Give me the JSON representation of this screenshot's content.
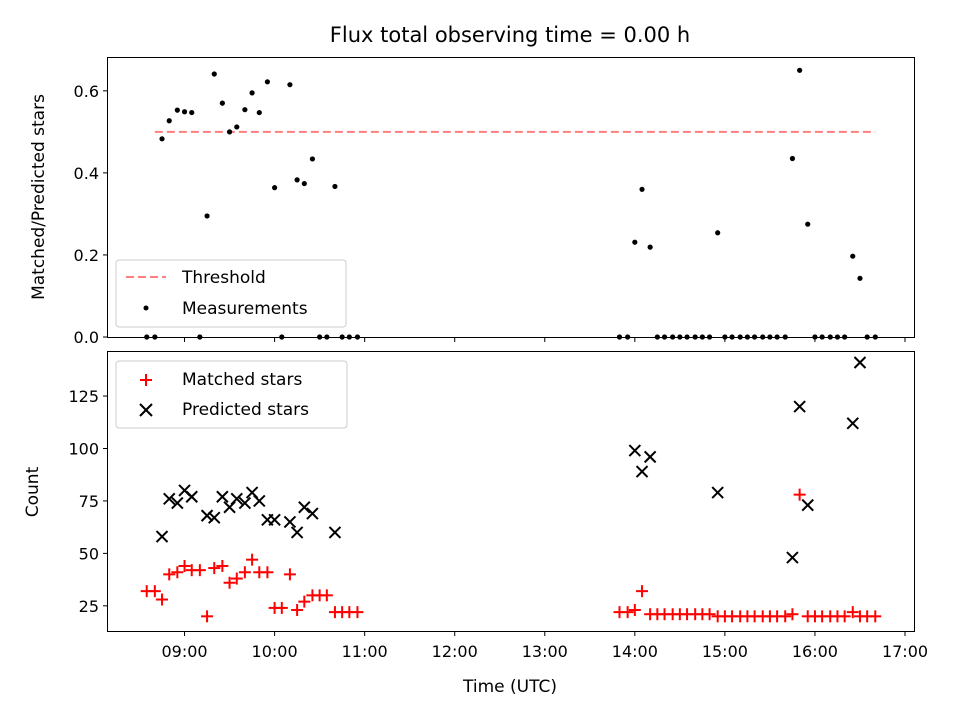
{
  "title": "Flux total observing time = 0.00 h",
  "x_axis": {
    "label": "Time (UTC)",
    "range_hours": [
      8.15,
      17.1
    ],
    "ticks": [
      9,
      10,
      11,
      12,
      13,
      14,
      15,
      16,
      17
    ],
    "tick_labels": [
      "09:00",
      "10:00",
      "11:00",
      "12:00",
      "13:00",
      "14:00",
      "15:00",
      "16:00",
      "17:00"
    ]
  },
  "colors": {
    "threshold": "#ff7f7f",
    "measurements": "#000000",
    "matched": "#ff0000",
    "predicted": "#000000"
  },
  "chart_data": [
    {
      "type": "scatter",
      "panel": "top",
      "title": "Flux total observing time = 0.00 h",
      "ylabel": "Matched/Predicted stars",
      "xlabel": "",
      "ylim": [
        0,
        0.68
      ],
      "yticks": [
        0.0,
        0.2,
        0.4,
        0.6
      ],
      "ytick_labels": [
        "0.0",
        "0.2",
        "0.4",
        "0.6"
      ],
      "legend": {
        "placement": "lower-left",
        "entries": [
          "Threshold",
          "Measurements"
        ]
      },
      "threshold": {
        "name": "Threshold",
        "y": 0.5,
        "x_start": 8.67,
        "x_end": 16.67,
        "style": "dashed"
      },
      "series": [
        {
          "name": "Measurements",
          "points": [
            [
              8.58,
              0.0
            ],
            [
              8.67,
              0.0
            ],
            [
              8.75,
              0.483
            ],
            [
              8.83,
              0.527
            ],
            [
              8.92,
              0.553
            ],
            [
              9.0,
              0.549
            ],
            [
              9.08,
              0.547
            ],
            [
              9.17,
              0.0
            ],
            [
              9.25,
              0.295
            ],
            [
              9.33,
              0.641
            ],
            [
              9.42,
              0.57
            ],
            [
              9.5,
              0.5
            ],
            [
              9.58,
              0.512
            ],
            [
              9.67,
              0.554
            ],
            [
              9.75,
              0.595
            ],
            [
              9.83,
              0.547
            ],
            [
              9.92,
              0.622
            ],
            [
              10.0,
              0.364
            ],
            [
              10.08,
              0.0
            ],
            [
              10.17,
              0.615
            ],
            [
              10.25,
              0.383
            ],
            [
              10.33,
              0.374
            ],
            [
              10.42,
              0.434
            ],
            [
              10.5,
              0.0
            ],
            [
              10.58,
              0.0
            ],
            [
              10.67,
              0.367
            ],
            [
              10.75,
              0.0
            ],
            [
              10.83,
              0.0
            ],
            [
              10.92,
              0.0
            ],
            [
              13.83,
              0.0
            ],
            [
              13.92,
              0.0
            ],
            [
              14.0,
              0.231
            ],
            [
              14.08,
              0.36
            ],
            [
              14.17,
              0.219
            ],
            [
              14.25,
              0.0
            ],
            [
              14.33,
              0.0
            ],
            [
              14.42,
              0.0
            ],
            [
              14.5,
              0.0
            ],
            [
              14.58,
              0.0
            ],
            [
              14.67,
              0.0
            ],
            [
              14.75,
              0.0
            ],
            [
              14.83,
              0.0
            ],
            [
              14.92,
              0.254
            ],
            [
              15.0,
              0.0
            ],
            [
              15.08,
              0.0
            ],
            [
              15.17,
              0.0
            ],
            [
              15.25,
              0.0
            ],
            [
              15.33,
              0.0
            ],
            [
              15.42,
              0.0
            ],
            [
              15.5,
              0.0
            ],
            [
              15.58,
              0.0
            ],
            [
              15.67,
              0.0
            ],
            [
              15.75,
              0.435
            ],
            [
              15.83,
              0.65
            ],
            [
              15.92,
              0.275
            ],
            [
              16.0,
              0.0
            ],
            [
              16.08,
              0.0
            ],
            [
              16.17,
              0.0
            ],
            [
              16.25,
              0.0
            ],
            [
              16.33,
              0.0
            ],
            [
              16.42,
              0.197
            ],
            [
              16.5,
              0.143
            ],
            [
              16.58,
              0.0
            ],
            [
              16.67,
              0.0
            ]
          ]
        }
      ]
    },
    {
      "type": "scatter",
      "panel": "bottom",
      "ylabel": "Count",
      "xlabel": "Time (UTC)",
      "ylim": [
        13,
        146
      ],
      "yticks": [
        25,
        50,
        75,
        100,
        125
      ],
      "ytick_labels": [
        "25",
        "50",
        "75",
        "100",
        "125"
      ],
      "legend": {
        "placement": "upper-left",
        "entries": [
          "Matched stars",
          "Predicted stars"
        ]
      },
      "series": [
        {
          "name": "Matched stars",
          "marker": "plus",
          "points": [
            [
              8.58,
              32
            ],
            [
              8.67,
              32
            ],
            [
              8.75,
              28
            ],
            [
              8.83,
              40
            ],
            [
              8.92,
              41
            ],
            [
              9.0,
              44
            ],
            [
              9.08,
              42
            ],
            [
              9.17,
              42
            ],
            [
              9.25,
              20
            ],
            [
              9.33,
              43
            ],
            [
              9.42,
              44
            ],
            [
              9.5,
              36
            ],
            [
              9.58,
              38
            ],
            [
              9.67,
              41
            ],
            [
              9.75,
              47
            ],
            [
              9.83,
              41
            ],
            [
              9.92,
              41
            ],
            [
              10.0,
              24
            ],
            [
              10.08,
              24
            ],
            [
              10.17,
              40
            ],
            [
              10.25,
              23
            ],
            [
              10.33,
              27
            ],
            [
              10.42,
              30
            ],
            [
              10.5,
              30
            ],
            [
              10.58,
              30
            ],
            [
              10.67,
              22
            ],
            [
              10.75,
              22
            ],
            [
              10.83,
              22
            ],
            [
              10.92,
              22
            ],
            [
              13.83,
              22
            ],
            [
              13.92,
              22
            ],
            [
              14.0,
              23
            ],
            [
              14.08,
              32
            ],
            [
              14.17,
              21
            ],
            [
              14.25,
              21
            ],
            [
              14.33,
              21
            ],
            [
              14.42,
              21
            ],
            [
              14.5,
              21
            ],
            [
              14.58,
              21
            ],
            [
              14.67,
              21
            ],
            [
              14.75,
              21
            ],
            [
              14.83,
              21
            ],
            [
              14.92,
              20
            ],
            [
              15.0,
              20
            ],
            [
              15.08,
              20
            ],
            [
              15.17,
              20
            ],
            [
              15.25,
              20
            ],
            [
              15.33,
              20
            ],
            [
              15.42,
              20
            ],
            [
              15.5,
              20
            ],
            [
              15.58,
              20
            ],
            [
              15.67,
              20
            ],
            [
              15.75,
              21
            ],
            [
              15.83,
              78
            ],
            [
              15.92,
              20
            ],
            [
              16.0,
              20
            ],
            [
              16.08,
              20
            ],
            [
              16.17,
              20
            ],
            [
              16.25,
              20
            ],
            [
              16.33,
              20
            ],
            [
              16.42,
              22
            ],
            [
              16.5,
              20
            ],
            [
              16.58,
              20
            ],
            [
              16.67,
              20
            ]
          ]
        },
        {
          "name": "Predicted stars",
          "marker": "x",
          "points": [
            [
              8.75,
              58
            ],
            [
              8.83,
              76
            ],
            [
              8.92,
              74
            ],
            [
              9.0,
              80
            ],
            [
              9.08,
              77
            ],
            [
              9.25,
              68
            ],
            [
              9.33,
              67
            ],
            [
              9.42,
              77
            ],
            [
              9.5,
              72
            ],
            [
              9.58,
              76
            ],
            [
              9.67,
              74
            ],
            [
              9.75,
              79
            ],
            [
              9.83,
              75
            ],
            [
              9.92,
              66
            ],
            [
              10.0,
              66
            ],
            [
              10.17,
              65
            ],
            [
              10.25,
              60
            ],
            [
              10.33,
              72
            ],
            [
              10.42,
              69
            ],
            [
              10.67,
              60
            ],
            [
              14.0,
              99
            ],
            [
              14.08,
              89
            ],
            [
              14.17,
              96
            ],
            [
              14.92,
              79
            ],
            [
              15.75,
              48
            ],
            [
              15.83,
              120
            ],
            [
              15.92,
              73
            ],
            [
              16.42,
              112
            ],
            [
              16.5,
              141
            ]
          ]
        }
      ]
    }
  ]
}
